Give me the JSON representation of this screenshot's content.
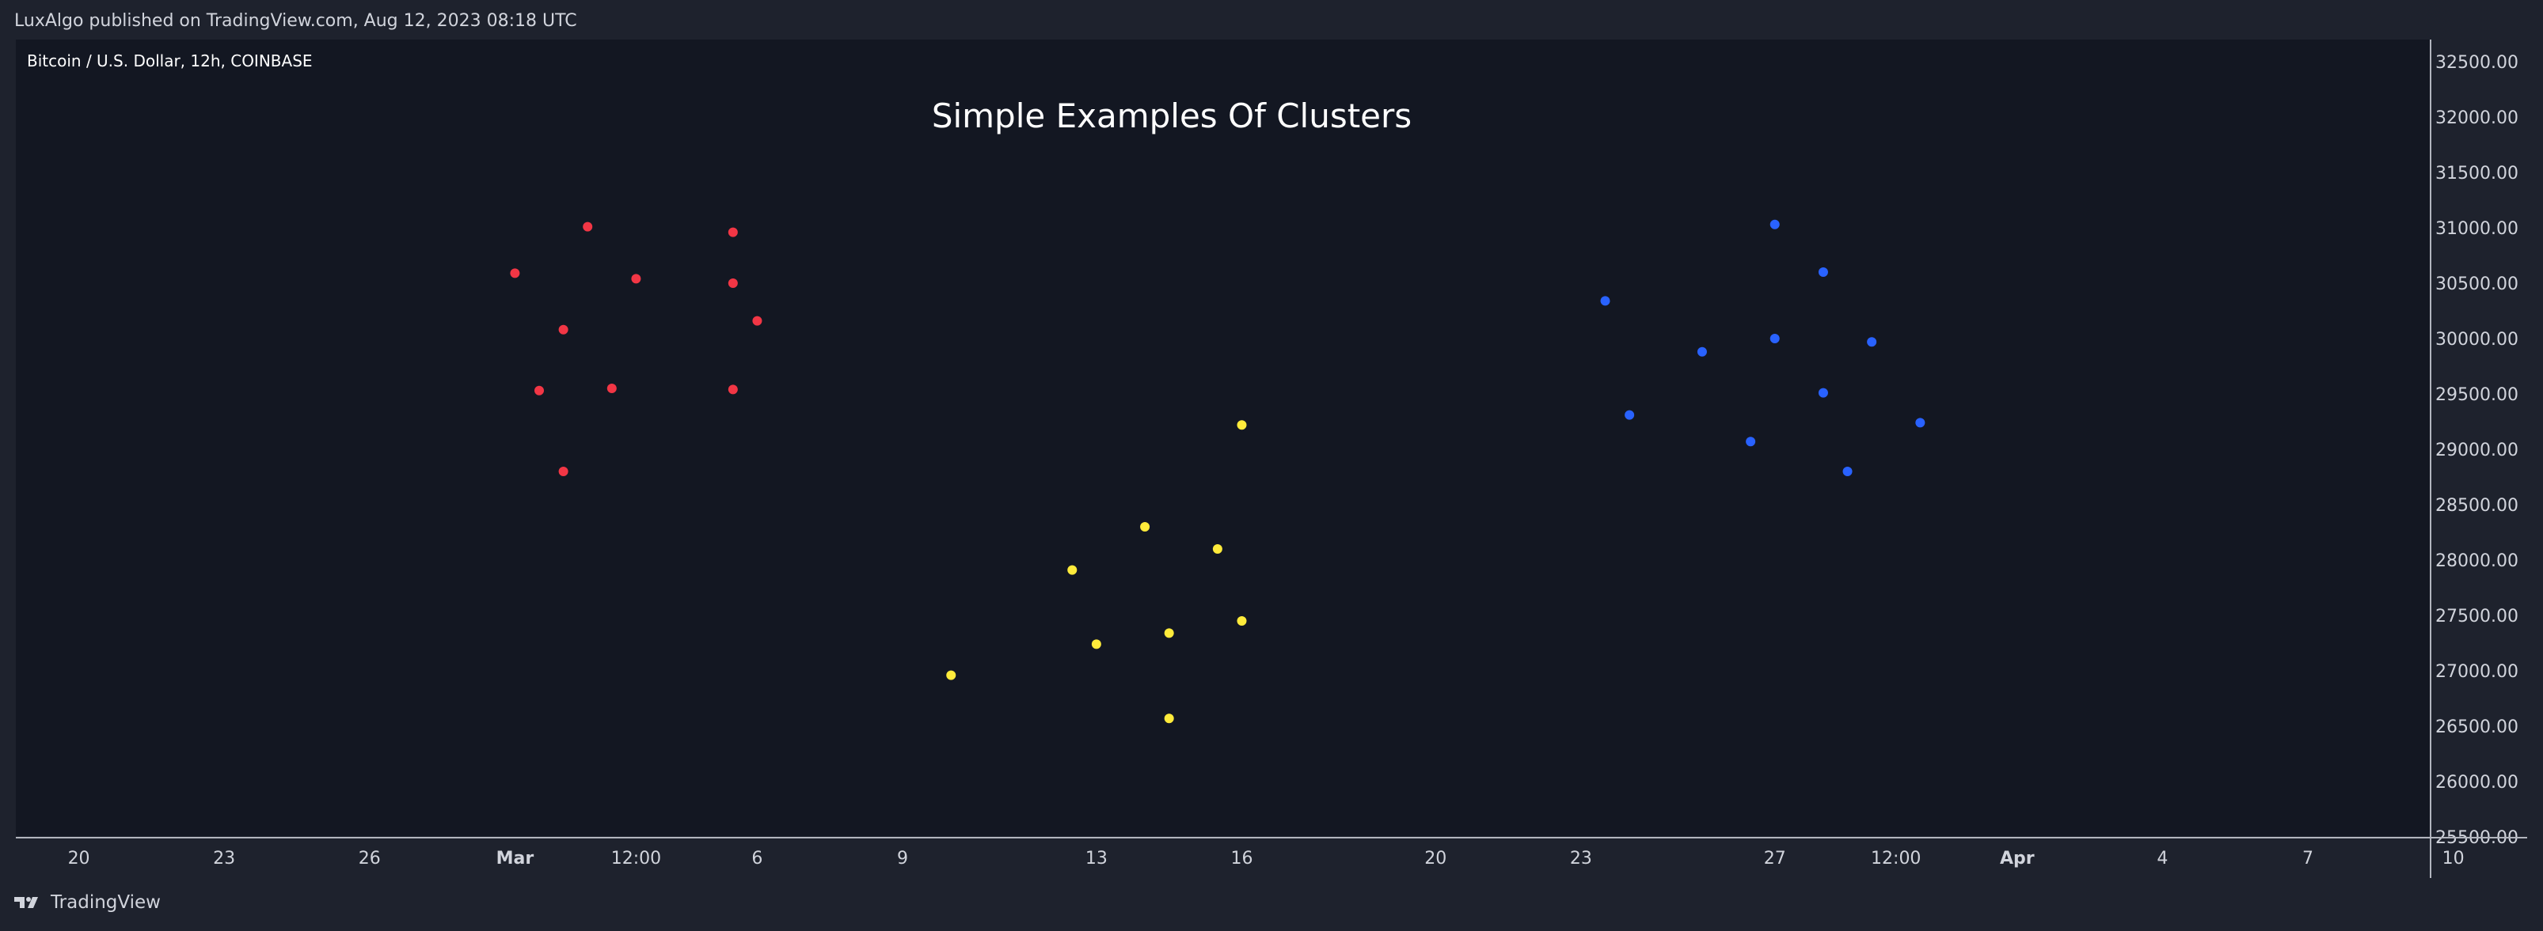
{
  "header": {
    "publisher_line": "LuxAlgo published on TradingView.com, Aug 12, 2023 08:18 UTC"
  },
  "chart_header": {
    "symbol_line": "Bitcoin / U.S. Dollar, 12h, COINBASE"
  },
  "footer": {
    "brand": "TradingView"
  },
  "colors": {
    "background": "#131722",
    "frame": "#1e222d",
    "text": "#d1d4dc",
    "cluster_red": "#f23645",
    "cluster_yellow": "#ffeb3b",
    "cluster_blue": "#2962ff"
  },
  "chart_data": {
    "type": "scatter",
    "title": "Simple Examples Of Clusters",
    "xlabel": "",
    "ylabel": "",
    "ylim": [
      25500,
      32700
    ],
    "y_ticks": [
      "32500.00",
      "32000.00",
      "31500.00",
      "31000.00",
      "30500.00",
      "30000.00",
      "29500.00",
      "29000.00",
      "28500.00",
      "28000.00",
      "27500.00",
      "27000.00",
      "26500.00",
      "26000.00",
      "25500.00"
    ],
    "y_axis_side": "right",
    "x_axis": {
      "unit": "days since Feb 19, 2023",
      "range": [
        18.7,
        68.5
      ],
      "ticks": [
        {
          "label": "20",
          "t": 20,
          "bold": false
        },
        {
          "label": "23",
          "t": 23,
          "bold": false
        },
        {
          "label": "26",
          "t": 26,
          "bold": false
        },
        {
          "label": "Mar",
          "t": 29,
          "bold": true
        },
        {
          "label": "12:00",
          "t": 31.5,
          "bold": false
        },
        {
          "label": "6",
          "t": 34,
          "bold": false
        },
        {
          "label": "9",
          "t": 37,
          "bold": false
        },
        {
          "label": "13",
          "t": 41,
          "bold": false
        },
        {
          "label": "16",
          "t": 44,
          "bold": false
        },
        {
          "label": "20",
          "t": 48,
          "bold": false
        },
        {
          "label": "23",
          "t": 51,
          "bold": false
        },
        {
          "label": "27",
          "t": 55,
          "bold": false
        },
        {
          "label": "12:00",
          "t": 57.5,
          "bold": false
        },
        {
          "label": "Apr",
          "t": 60,
          "bold": true
        },
        {
          "label": "4",
          "t": 63,
          "bold": false
        },
        {
          "label": "7",
          "t": 66,
          "bold": false
        },
        {
          "label": "10",
          "t": 69,
          "bold": false
        }
      ]
    },
    "grid": false,
    "legend": "none",
    "series": [
      {
        "color": "#f23645",
        "points": [
          {
            "x": 29.0,
            "y": 30590
          },
          {
            "x": 30.5,
            "y": 31010
          },
          {
            "x": 33.5,
            "y": 30960
          },
          {
            "x": 31.5,
            "y": 30540
          },
          {
            "x": 33.5,
            "y": 30500
          },
          {
            "x": 34.0,
            "y": 30160
          },
          {
            "x": 30.0,
            "y": 30080
          },
          {
            "x": 29.5,
            "y": 29530
          },
          {
            "x": 31.0,
            "y": 29550
          },
          {
            "x": 33.5,
            "y": 29540
          },
          {
            "x": 30.0,
            "y": 28800
          }
        ]
      },
      {
        "color": "#ffeb3b",
        "points": [
          {
            "x": 44.0,
            "y": 29220
          },
          {
            "x": 42.0,
            "y": 28300
          },
          {
            "x": 43.5,
            "y": 28100
          },
          {
            "x": 40.5,
            "y": 27910
          },
          {
            "x": 44.0,
            "y": 27450
          },
          {
            "x": 42.5,
            "y": 27340
          },
          {
            "x": 41.0,
            "y": 27240
          },
          {
            "x": 38.0,
            "y": 26960
          },
          {
            "x": 42.5,
            "y": 26570
          }
        ]
      },
      {
        "color": "#2962ff",
        "points": [
          {
            "x": 55.0,
            "y": 31030
          },
          {
            "x": 56.0,
            "y": 30600
          },
          {
            "x": 51.5,
            "y": 30340
          },
          {
            "x": 55.0,
            "y": 30000
          },
          {
            "x": 57.0,
            "y": 29970
          },
          {
            "x": 53.5,
            "y": 29880
          },
          {
            "x": 56.0,
            "y": 29510
          },
          {
            "x": 52.0,
            "y": 29310
          },
          {
            "x": 58.0,
            "y": 29240
          },
          {
            "x": 54.5,
            "y": 29070
          },
          {
            "x": 56.5,
            "y": 28800
          }
        ]
      }
    ]
  }
}
